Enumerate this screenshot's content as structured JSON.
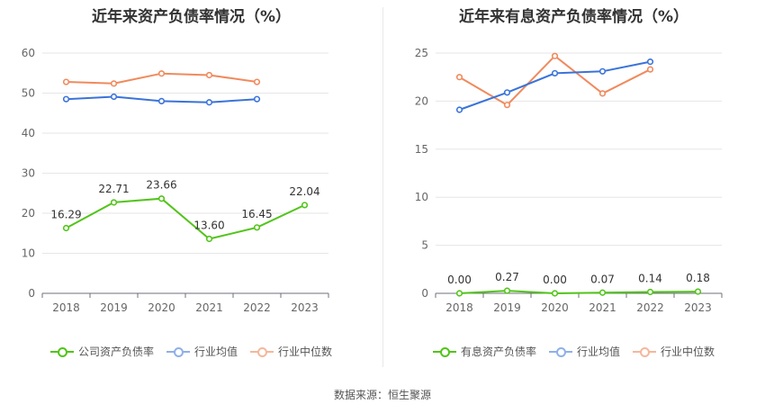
{
  "chart_data": [
    {
      "type": "line",
      "title": "近年来资产负债率情况（%）",
      "categories": [
        "2018",
        "2019",
        "2020",
        "2021",
        "2022",
        "2023"
      ],
      "ylim": [
        0,
        60
      ],
      "yticks": [
        0,
        10,
        20,
        30,
        40,
        50,
        60
      ],
      "series": [
        {
          "name": "公司资产负债率",
          "values": [
            16.29,
            22.71,
            23.66,
            13.6,
            16.45,
            22.04
          ],
          "labels": [
            "16.29",
            "22.71",
            "23.66",
            "13.60",
            "16.45",
            "22.04"
          ],
          "color": "#52c41a"
        },
        {
          "name": "行业均值",
          "values": [
            48.5,
            49.1,
            48.0,
            47.7,
            48.5,
            null
          ],
          "color": "#3a73d9"
        },
        {
          "name": "行业中位数",
          "values": [
            52.8,
            52.4,
            54.9,
            54.5,
            52.8,
            null
          ],
          "color": "#f08a5d"
        }
      ]
    },
    {
      "type": "line",
      "title": "近年来有息资产负债率情况（%）",
      "categories": [
        "2018",
        "2019",
        "2020",
        "2021",
        "2022",
        "2023"
      ],
      "ylim": [
        0,
        25
      ],
      "yticks": [
        0,
        5,
        10,
        15,
        20,
        25
      ],
      "series": [
        {
          "name": "有息资产负债率",
          "values": [
            0.0,
            0.27,
            0.0,
            0.07,
            0.14,
            0.18
          ],
          "labels": [
            "0.00",
            "0.27",
            "0.00",
            "0.07",
            "0.14",
            "0.18"
          ],
          "color": "#52c41a"
        },
        {
          "name": "行业均值",
          "values": [
            19.1,
            20.9,
            22.9,
            23.1,
            24.1,
            null
          ],
          "color": "#3a73d9"
        },
        {
          "name": "行业中位数",
          "values": [
            22.5,
            19.6,
            24.7,
            20.8,
            23.3,
            null
          ],
          "color": "#f08a5d"
        }
      ]
    }
  ],
  "legend_colors": {
    "line_main": "#52c41a",
    "line_mean": "#8fb0e8",
    "line_median": "#f5b79c"
  },
  "footer": {
    "source": "数据来源：恒生聚源"
  }
}
